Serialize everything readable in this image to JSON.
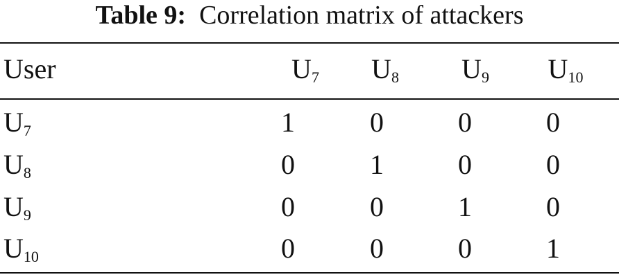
{
  "caption": {
    "label": "Table 9:",
    "text": "Correlation matrix of attackers"
  },
  "table": {
    "header": [
      {
        "text": "User"
      },
      {
        "text": "U",
        "sub": "7"
      },
      {
        "text": "U",
        "sub": "8"
      },
      {
        "text": "U",
        "sub": "9"
      },
      {
        "text": "U",
        "sub": "10"
      }
    ],
    "rows": [
      [
        {
          "text": "U",
          "sub": "7"
        },
        1,
        0,
        0,
        0
      ],
      [
        {
          "text": "U",
          "sub": "8"
        },
        0,
        1,
        0,
        0
      ],
      [
        {
          "text": "U",
          "sub": "9"
        },
        0,
        0,
        1,
        0
      ],
      [
        {
          "text": "U",
          "sub": "10"
        },
        0,
        0,
        0,
        1
      ]
    ]
  }
}
